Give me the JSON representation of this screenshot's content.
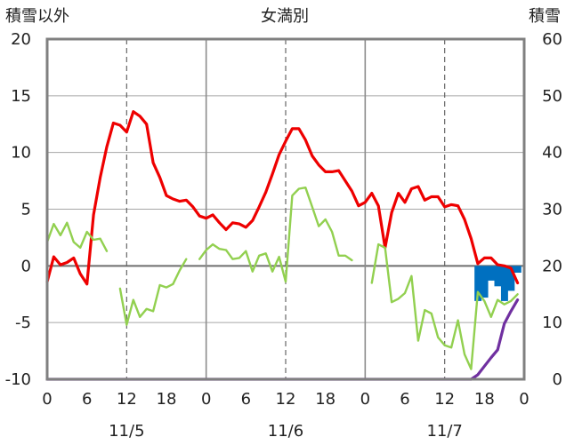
{
  "chart_data": {
    "type": "line",
    "title": "女満別",
    "left_axis_label": "積雪以外",
    "right_axis_label": "積雪",
    "y_left_range": [
      -10,
      20
    ],
    "y_left_ticks": [
      "20",
      "15",
      "10",
      "5",
      "0",
      "-5",
      "-10"
    ],
    "y_right_range": [
      0,
      60
    ],
    "y_right_ticks": [
      "60",
      "50",
      "40",
      "30",
      "20",
      "10",
      "0"
    ],
    "x_range_hours": [
      0,
      72
    ],
    "x_tick_labels": [
      "0",
      "6",
      "12",
      "18",
      "0",
      "6",
      "12",
      "18",
      "0",
      "6",
      "12",
      "18",
      "0"
    ],
    "date_labels": [
      "11/5",
      "11/6",
      "11/7"
    ],
    "grid": "vertical dashed at 12:00, solid at 0:00, horizontal line at 0",
    "colors": {
      "red": "#ee0000",
      "green": "#92d050",
      "purple": "#7030a0",
      "blue": "#0070c0",
      "axis": "#808080"
    },
    "series": [
      {
        "color": "red",
        "axis": "left",
        "x": [
          0,
          1,
          2,
          3,
          4,
          5,
          6,
          7,
          8,
          9,
          10,
          11,
          12,
          13,
          14,
          15,
          16,
          17,
          18,
          19,
          20,
          21,
          22,
          23,
          24,
          25,
          26,
          27,
          28,
          29,
          30,
          31,
          32,
          33,
          34,
          35,
          36,
          37,
          38,
          39,
          40,
          41,
          42,
          43,
          44,
          45,
          46,
          47,
          48,
          49,
          50,
          51,
          52,
          53,
          54,
          55,
          56,
          57,
          58,
          59,
          60,
          61,
          62,
          63,
          64,
          65,
          66,
          67,
          68,
          69,
          70,
          71
        ],
        "values": [
          -1.4,
          0.8,
          0.1,
          0.3,
          0.7,
          -0.7,
          -1.6,
          4.5,
          7.8,
          10.5,
          12.6,
          12.4,
          11.8,
          13.6,
          13.2,
          12.5,
          9.1,
          7.8,
          6.2,
          5.9,
          5.7,
          5.8,
          5.2,
          4.4,
          4.2,
          4.5,
          3.8,
          3.2,
          3.8,
          3.7,
          3.4,
          4.0,
          5.2,
          6.5,
          8.1,
          9.8,
          11.0,
          12.1,
          12.1,
          11.1,
          9.7,
          8.9,
          8.3,
          8.3,
          8.4,
          7.5,
          6.6,
          5.3,
          5.6,
          6.4,
          5.3,
          1.6,
          4.7,
          6.4,
          5.6,
          6.8,
          7.0,
          5.8,
          6.1,
          6.1,
          5.2,
          5.4,
          5.3,
          4.1,
          2.4,
          0.2,
          0.7,
          0.7,
          0.1,
          0.0,
          -0.2,
          -1.5
        ]
      },
      {
        "color": "green",
        "axis": "left",
        "x": [
          0,
          1,
          2,
          3,
          4,
          5,
          6,
          7,
          8,
          9,
          null,
          11,
          12,
          13,
          14,
          15,
          16,
          17,
          18,
          19,
          20,
          21,
          null,
          23,
          24,
          25,
          26,
          27,
          28,
          29,
          30,
          31,
          32,
          33,
          34,
          35,
          36,
          37,
          38,
          39,
          40,
          41,
          42,
          43,
          44,
          45,
          46,
          null,
          49,
          50,
          51,
          52,
          53,
          54,
          55,
          56,
          57,
          58,
          59,
          60,
          61,
          62,
          63,
          64,
          65,
          66,
          67,
          68,
          69,
          70,
          71
        ],
        "values": [
          2.1,
          3.7,
          2.7,
          3.8,
          2.1,
          1.6,
          3.0,
          2.3,
          2.4,
          1.3,
          null,
          -2.0,
          -5.2,
          -3.0,
          -4.5,
          -3.8,
          -4.0,
          -1.7,
          -1.9,
          -1.6,
          -0.4,
          0.6,
          null,
          0.6,
          1.4,
          1.9,
          1.5,
          1.4,
          0.6,
          0.7,
          1.3,
          -0.5,
          0.9,
          1.1,
          -0.5,
          0.8,
          -1.4,
          6.2,
          6.8,
          6.9,
          5.2,
          3.5,
          4.1,
          3.0,
          0.9,
          0.9,
          0.5,
          null,
          -1.5,
          1.9,
          1.6,
          -3.2,
          -2.9,
          -2.4,
          -0.9,
          -6.6,
          -3.9,
          -4.2,
          -6.3,
          -7.0,
          -7.2,
          -4.8,
          -7.8,
          -9.1,
          -2.3,
          -3.1,
          -4.5,
          -3.0,
          -3.4,
          -3.1,
          -2.5
        ]
      },
      {
        "color": "purple",
        "axis": "right",
        "x": [
          0,
          64,
          65,
          66,
          67,
          68,
          69,
          70,
          71
        ],
        "values": [
          0,
          0,
          0.8,
          2.3,
          3.8,
          5.2,
          9.8,
          12.0,
          14.0
        ]
      }
    ],
    "bars": {
      "color": "blue",
      "axis": "left",
      "x": [
        65,
        66,
        67,
        68,
        69,
        70,
        71
      ],
      "values": [
        -3.1,
        -2.8,
        -1.3,
        -1.8,
        -3.1,
        -2.2,
        -0.6
      ]
    }
  }
}
